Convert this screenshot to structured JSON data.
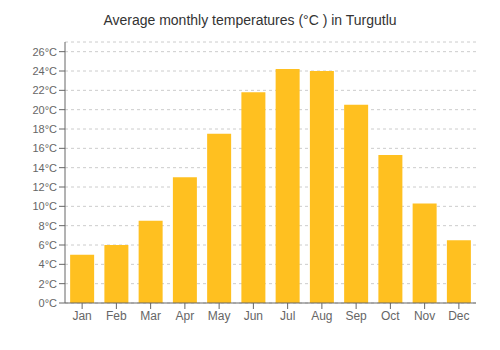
{
  "chart_data": {
    "type": "bar",
    "title": "Average monthly temperatures (°C ) in Turgutlu",
    "categories": [
      "Jan",
      "Feb",
      "Mar",
      "Apr",
      "May",
      "Jun",
      "Jul",
      "Aug",
      "Sep",
      "Oct",
      "Nov",
      "Dec"
    ],
    "values": [
      5.0,
      6.0,
      8.5,
      13.0,
      17.5,
      21.8,
      24.2,
      24.0,
      20.5,
      15.3,
      10.3,
      6.5
    ],
    "color": "#FFC020",
    "ylim": [
      0,
      27
    ],
    "yticks": [
      {
        "value": 0,
        "label": "0°C"
      },
      {
        "value": 2,
        "label": "2°C"
      },
      {
        "value": 4,
        "label": "4°C"
      },
      {
        "value": 6,
        "label": "6°C"
      },
      {
        "value": 8,
        "label": "8°C"
      },
      {
        "value": 10,
        "label": "10°C"
      },
      {
        "value": 12,
        "label": "12°C"
      },
      {
        "value": 14,
        "label": "14°C"
      },
      {
        "value": 16,
        "label": "16°C"
      },
      {
        "value": 18,
        "label": "18°C"
      },
      {
        "value": 20,
        "label": "20°C"
      },
      {
        "value": 22,
        "label": "22°C"
      },
      {
        "value": 24,
        "label": "24°C"
      },
      {
        "value": 26,
        "label": "26°C"
      }
    ],
    "grid": true
  }
}
